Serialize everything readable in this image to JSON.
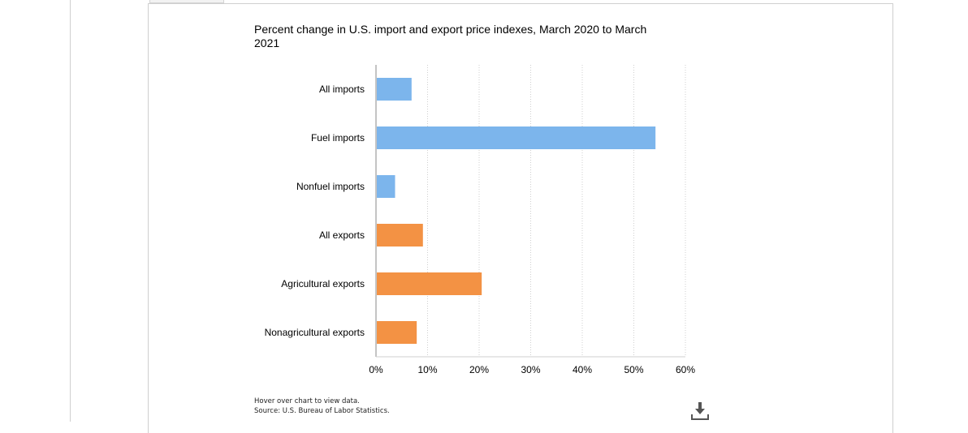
{
  "colors": {
    "imports": "#7cb5ec",
    "exports": "#f39244",
    "grid": "#cfcfcf",
    "axis": "#888888"
  },
  "footnote": {
    "hover": "Hover over chart to view data.",
    "source": "Source: U.S. Bureau of Labor Statistics."
  },
  "download": {
    "icon": "download-icon"
  },
  "chart_data": {
    "type": "bar",
    "orientation": "horizontal",
    "title": "Percent change in U.S. import and export price indexes, March 2020 to March 2021",
    "categories": [
      "All imports",
      "Fuel imports",
      "Nonfuel imports",
      "All exports",
      "Agricultural exports",
      "Nonagricultural exports"
    ],
    "values": [
      6.9,
      54.2,
      3.7,
      9.1,
      20.5,
      7.9
    ],
    "groups": [
      "imports",
      "imports",
      "imports",
      "exports",
      "exports",
      "exports"
    ],
    "xlim": [
      0,
      60
    ],
    "xticks": [
      0,
      10,
      20,
      30,
      40,
      50,
      60
    ],
    "xtick_labels": [
      "0%",
      "10%",
      "20%",
      "30%",
      "40%",
      "50%",
      "60%"
    ],
    "grid": "vertical dotted",
    "legend": "none"
  }
}
